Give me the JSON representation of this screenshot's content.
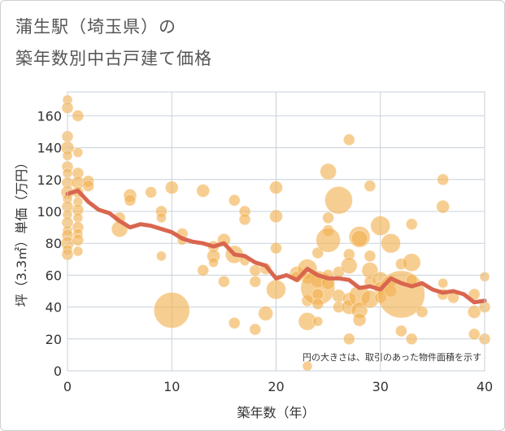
{
  "chart_data": {
    "type": "scatter",
    "title": [
      "蒲生駅（埼玉県）の",
      "築年数別中古戸建て価格"
    ],
    "xlabel": "築年数（年）",
    "ylabel": "坪（3.3㎡）単価（万円）",
    "xlim": [
      0,
      40
    ],
    "ylim": [
      0,
      175
    ],
    "xticks": [
      0,
      10,
      20,
      30,
      40
    ],
    "yticks": [
      0,
      20,
      40,
      60,
      80,
      100,
      120,
      140,
      160
    ],
    "grid": true,
    "note": "円の大きさは、取引のあった物件面積を示す",
    "colors": {
      "bubble": "#f2b04f",
      "line": "#d9664f",
      "grid": "#c8d1d9"
    },
    "scatter_points": [
      {
        "x": 0,
        "y": 170,
        "s": 6
      },
      {
        "x": 0,
        "y": 165,
        "s": 7
      },
      {
        "x": 0,
        "y": 147,
        "s": 7
      },
      {
        "x": 0,
        "y": 140,
        "s": 8
      },
      {
        "x": 0,
        "y": 135,
        "s": 6
      },
      {
        "x": 0,
        "y": 128,
        "s": 7
      },
      {
        "x": 0,
        "y": 124,
        "s": 6
      },
      {
        "x": 0,
        "y": 118,
        "s": 7
      },
      {
        "x": 0,
        "y": 112,
        "s": 8
      },
      {
        "x": 0,
        "y": 108,
        "s": 6
      },
      {
        "x": 0,
        "y": 103,
        "s": 7
      },
      {
        "x": 0,
        "y": 98,
        "s": 6
      },
      {
        "x": 0,
        "y": 93,
        "s": 7
      },
      {
        "x": 0,
        "y": 88,
        "s": 6
      },
      {
        "x": 0,
        "y": 85,
        "s": 7
      },
      {
        "x": 0,
        "y": 80,
        "s": 8
      },
      {
        "x": 0,
        "y": 76,
        "s": 6
      },
      {
        "x": 0,
        "y": 73,
        "s": 7
      },
      {
        "x": 1,
        "y": 160,
        "s": 7
      },
      {
        "x": 1,
        "y": 137,
        "s": 6
      },
      {
        "x": 1,
        "y": 124,
        "s": 7
      },
      {
        "x": 1,
        "y": 118,
        "s": 8
      },
      {
        "x": 1,
        "y": 112,
        "s": 7
      },
      {
        "x": 1,
        "y": 106,
        "s": 6
      },
      {
        "x": 1,
        "y": 101,
        "s": 7
      },
      {
        "x": 1,
        "y": 96,
        "s": 6
      },
      {
        "x": 1,
        "y": 90,
        "s": 7
      },
      {
        "x": 1,
        "y": 86,
        "s": 6
      },
      {
        "x": 1,
        "y": 82,
        "s": 7
      },
      {
        "x": 1,
        "y": 75,
        "s": 6
      },
      {
        "x": 2,
        "y": 119,
        "s": 7
      },
      {
        "x": 2,
        "y": 116,
        "s": 7
      },
      {
        "x": 5,
        "y": 96,
        "s": 7
      },
      {
        "x": 5,
        "y": 89,
        "s": 10
      },
      {
        "x": 6,
        "y": 110,
        "s": 8
      },
      {
        "x": 6,
        "y": 107,
        "s": 7
      },
      {
        "x": 8,
        "y": 112,
        "s": 7
      },
      {
        "x": 9,
        "y": 100,
        "s": 7
      },
      {
        "x": 9,
        "y": 96,
        "s": 6
      },
      {
        "x": 9,
        "y": 72,
        "s": 6
      },
      {
        "x": 10,
        "y": 115,
        "s": 8
      },
      {
        "x": 10,
        "y": 38,
        "s": 22
      },
      {
        "x": 11,
        "y": 86,
        "s": 7
      },
      {
        "x": 11,
        "y": 82,
        "s": 6
      },
      {
        "x": 13,
        "y": 113,
        "s": 8
      },
      {
        "x": 13,
        "y": 63,
        "s": 7
      },
      {
        "x": 14,
        "y": 78,
        "s": 7
      },
      {
        "x": 14,
        "y": 72,
        "s": 8
      },
      {
        "x": 14,
        "y": 68,
        "s": 6
      },
      {
        "x": 15,
        "y": 82,
        "s": 8
      },
      {
        "x": 15,
        "y": 56,
        "s": 7
      },
      {
        "x": 16,
        "y": 107,
        "s": 7
      },
      {
        "x": 16,
        "y": 73,
        "s": 11
      },
      {
        "x": 16,
        "y": 30,
        "s": 7
      },
      {
        "x": 17,
        "y": 100,
        "s": 7
      },
      {
        "x": 17,
        "y": 95,
        "s": 7
      },
      {
        "x": 17,
        "y": 69,
        "s": 6
      },
      {
        "x": 18,
        "y": 63,
        "s": 7
      },
      {
        "x": 18,
        "y": 56,
        "s": 7
      },
      {
        "x": 18,
        "y": 26,
        "s": 7
      },
      {
        "x": 19,
        "y": 64,
        "s": 7
      },
      {
        "x": 19,
        "y": 36,
        "s": 9
      },
      {
        "x": 20,
        "y": 115,
        "s": 8
      },
      {
        "x": 20,
        "y": 97,
        "s": 8
      },
      {
        "x": 20,
        "y": 77,
        "s": 7
      },
      {
        "x": 20,
        "y": 51,
        "s": 12
      },
      {
        "x": 22,
        "y": 61,
        "s": 9
      },
      {
        "x": 22,
        "y": 59,
        "s": 7
      },
      {
        "x": 23,
        "y": 64,
        "s": 12
      },
      {
        "x": 23,
        "y": 58,
        "s": 7
      },
      {
        "x": 23,
        "y": 44,
        "s": 7
      },
      {
        "x": 23,
        "y": 31,
        "s": 11
      },
      {
        "x": 23,
        "y": 3,
        "s": 6
      },
      {
        "x": 24,
        "y": 74,
        "s": 7
      },
      {
        "x": 24,
        "y": 57,
        "s": 9
      },
      {
        "x": 24,
        "y": 52,
        "s": 21
      },
      {
        "x": 24,
        "y": 48,
        "s": 7
      },
      {
        "x": 24,
        "y": 42,
        "s": 7
      },
      {
        "x": 24,
        "y": 31,
        "s": 6
      },
      {
        "x": 25,
        "y": 125,
        "s": 10
      },
      {
        "x": 25,
        "y": 96,
        "s": 7
      },
      {
        "x": 25,
        "y": 88,
        "s": 7
      },
      {
        "x": 25,
        "y": 82,
        "s": 15
      },
      {
        "x": 25,
        "y": 60,
        "s": 7
      },
      {
        "x": 25,
        "y": 55,
        "s": 8
      },
      {
        "x": 26,
        "y": 107,
        "s": 17
      },
      {
        "x": 26,
        "y": 62,
        "s": 7
      },
      {
        "x": 26,
        "y": 47,
        "s": 8
      },
      {
        "x": 26,
        "y": 40,
        "s": 7
      },
      {
        "x": 27,
        "y": 145,
        "s": 7
      },
      {
        "x": 27,
        "y": 73,
        "s": 7
      },
      {
        "x": 27,
        "y": 66,
        "s": 10
      },
      {
        "x": 27,
        "y": 45,
        "s": 8
      },
      {
        "x": 27,
        "y": 40,
        "s": 9
      },
      {
        "x": 27,
        "y": 20,
        "s": 7
      },
      {
        "x": 28,
        "y": 84,
        "s": 13
      },
      {
        "x": 28,
        "y": 83,
        "s": 10
      },
      {
        "x": 28,
        "y": 47,
        "s": 13
      },
      {
        "x": 28,
        "y": 38,
        "s": 10
      },
      {
        "x": 28,
        "y": 32,
        "s": 8
      },
      {
        "x": 29,
        "y": 116,
        "s": 7
      },
      {
        "x": 29,
        "y": 72,
        "s": 7
      },
      {
        "x": 29,
        "y": 63,
        "s": 10
      },
      {
        "x": 29,
        "y": 56,
        "s": 7
      },
      {
        "x": 29,
        "y": 45,
        "s": 11
      },
      {
        "x": 30,
        "y": 91,
        "s": 12
      },
      {
        "x": 30,
        "y": 57,
        "s": 10
      },
      {
        "x": 30,
        "y": 52,
        "s": 8
      },
      {
        "x": 30,
        "y": 46,
        "s": 7
      },
      {
        "x": 31,
        "y": 80,
        "s": 12
      },
      {
        "x": 31,
        "y": 56,
        "s": 7
      },
      {
        "x": 31,
        "y": 50,
        "s": 7
      },
      {
        "x": 32,
        "y": 67,
        "s": 7
      },
      {
        "x": 32,
        "y": 48,
        "s": 29
      },
      {
        "x": 32,
        "y": 25,
        "s": 7
      },
      {
        "x": 33,
        "y": 92,
        "s": 7
      },
      {
        "x": 33,
        "y": 68,
        "s": 11
      },
      {
        "x": 33,
        "y": 57,
        "s": 7
      },
      {
        "x": 33,
        "y": 20,
        "s": 7
      },
      {
        "x": 34,
        "y": 37,
        "s": 7
      },
      {
        "x": 36,
        "y": 120,
        "s": 7
      },
      {
        "x": 36,
        "y": 103,
        "s": 8
      },
      {
        "x": 36,
        "y": 55,
        "s": 6
      },
      {
        "x": 36,
        "y": 48,
        "s": 7
      },
      {
        "x": 37,
        "y": 46,
        "s": 7
      },
      {
        "x": 39,
        "y": 48,
        "s": 7
      },
      {
        "x": 39,
        "y": 37,
        "s": 8
      },
      {
        "x": 39,
        "y": 23,
        "s": 7
      },
      {
        "x": 40,
        "y": 59,
        "s": 6
      },
      {
        "x": 40,
        "y": 40,
        "s": 7
      },
      {
        "x": 40,
        "y": 20,
        "s": 7
      }
    ],
    "trend_line": {
      "x": [
        0,
        1,
        2,
        3,
        4,
        5,
        6,
        7,
        8,
        9,
        10,
        11,
        12,
        13,
        14,
        15,
        16,
        17,
        18,
        19,
        20,
        21,
        22,
        23,
        24,
        25,
        26,
        27,
        28,
        29,
        30,
        31,
        32,
        33,
        34,
        35,
        36,
        37,
        38,
        39,
        40
      ],
      "y": [
        111,
        113,
        106,
        101,
        99,
        94,
        90,
        92,
        91,
        89,
        87,
        83,
        81,
        80,
        78,
        80,
        73,
        72,
        68,
        66,
        58,
        60,
        57,
        64,
        60,
        58,
        58,
        57,
        52,
        53,
        51,
        58,
        55,
        53,
        55,
        51,
        49,
        50,
        48,
        43,
        44
      ]
    }
  }
}
